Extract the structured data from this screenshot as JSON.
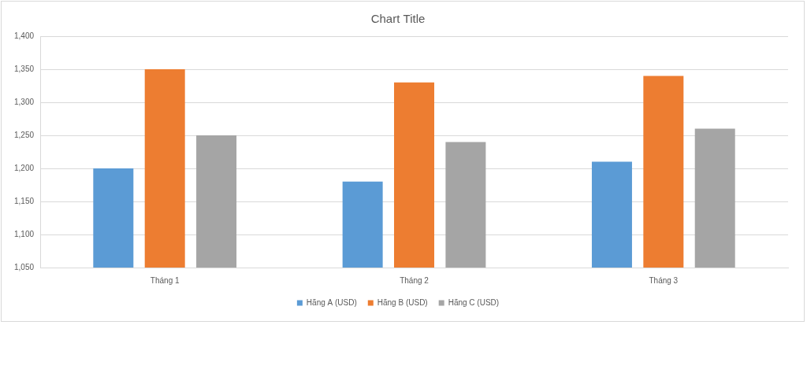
{
  "chart_data": {
    "type": "bar",
    "title": "Chart Title",
    "categories": [
      "Tháng 1",
      "Tháng 2",
      "Tháng 3"
    ],
    "series": [
      {
        "name": "Hãng A (USD)",
        "color": "#5b9bd5",
        "values": [
          1200,
          1180,
          1210
        ]
      },
      {
        "name": "Hãng B (USD)",
        "color": "#ed7d31",
        "values": [
          1350,
          1330,
          1340
        ]
      },
      {
        "name": "Hãng C (USD)",
        "color": "#a5a5a5",
        "values": [
          1250,
          1240,
          1260
        ]
      }
    ],
    "ylim": [
      1050,
      1400
    ],
    "yticks": [
      {
        "value": 1050,
        "label": "1,050"
      },
      {
        "value": 1100,
        "label": "1,100"
      },
      {
        "value": 1150,
        "label": "1,150"
      },
      {
        "value": 1200,
        "label": "1,200"
      },
      {
        "value": 1250,
        "label": "1,250"
      },
      {
        "value": 1300,
        "label": "1,300"
      },
      {
        "value": 1350,
        "label": "1,350"
      },
      {
        "value": 1400,
        "label": "1,400"
      }
    ],
    "grid": true,
    "legend": "bottom"
  }
}
